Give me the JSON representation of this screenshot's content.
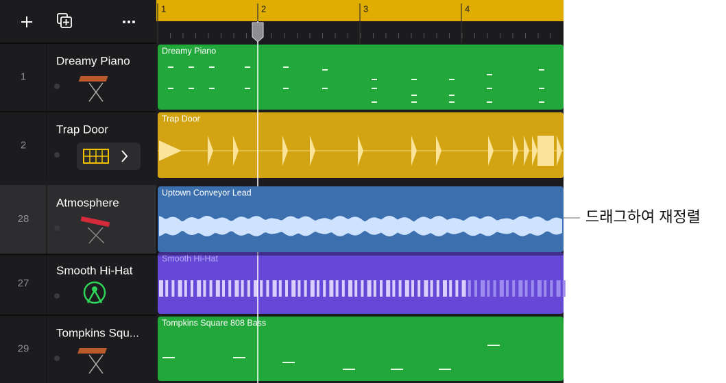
{
  "ruler": [
    "1",
    "2",
    "3",
    "4"
  ],
  "tracks": [
    {
      "number": "1",
      "name": "Dreamy Piano",
      "region": "Dreamy Piano"
    },
    {
      "number": "2",
      "name": "Trap Door",
      "region": "Trap Door"
    },
    {
      "number": "28",
      "name": "Atmosphere",
      "region": "Uptown Conveyor Lead"
    },
    {
      "number": "27",
      "name": "Smooth Hi-Hat",
      "region": "Smooth Hi-Hat"
    },
    {
      "number": "29",
      "name": "Tompkins Squ...",
      "region": "Tompkins Square 808 Bass"
    }
  ],
  "callout": "드래그하여 재정렬"
}
